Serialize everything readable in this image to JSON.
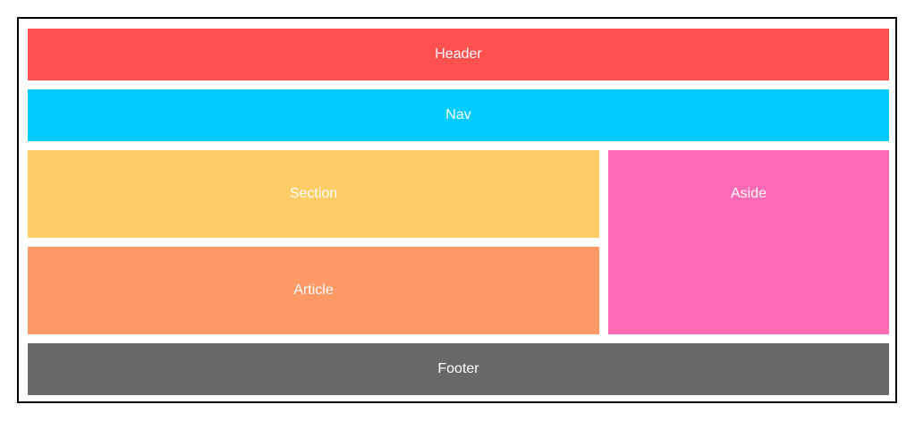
{
  "layout": {
    "header": {
      "label": "Header",
      "color": "#ff5050"
    },
    "nav": {
      "label": "Nav",
      "color": "#00ccff"
    },
    "section": {
      "label": "Section",
      "color": "#ffcc66"
    },
    "article": {
      "label": "Article",
      "color": "#ff9966"
    },
    "aside": {
      "label": "Aside",
      "color": "#ff6ab4"
    },
    "footer": {
      "label": "Footer",
      "color": "#686868"
    }
  }
}
